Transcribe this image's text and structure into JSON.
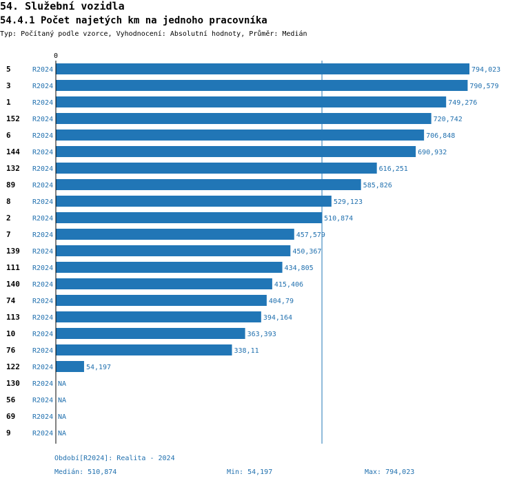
{
  "header": {
    "section_title": "54. Služební vozidla",
    "chart_title": "54.4.1 Počet najetých km na jednoho pracovníka",
    "subtitle": "Typ: Počítaný podle vzorce, Vyhodnocení: Absolutní hodnoty, Průměr: Medián"
  },
  "colors": {
    "bar": "#2176b6",
    "value_text": "#1f6fae",
    "axis": "#000000",
    "median_line": "#2176b6"
  },
  "chart_data": {
    "type": "bar",
    "orientation": "horizontal",
    "axis_zero_label": "0",
    "series_label": "R2024",
    "categories": [
      "5",
      "3",
      "1",
      "152",
      "6",
      "144",
      "132",
      "89",
      "8",
      "2",
      "7",
      "139",
      "111",
      "140",
      "74",
      "113",
      "10",
      "76",
      "122",
      "130",
      "56",
      "69",
      "9"
    ],
    "values": [
      794.023,
      790.579,
      749.276,
      720.742,
      706.848,
      690.932,
      616.251,
      585.826,
      529.123,
      510.874,
      457.579,
      450.367,
      434.805,
      415.406,
      404.79,
      394.164,
      363.393,
      338.11,
      54.197,
      null,
      null,
      null,
      null
    ],
    "value_labels": [
      "794,023",
      "790,579",
      "749,276",
      "720,742",
      "706,848",
      "690,932",
      "616,251",
      "585,826",
      "529,123",
      "510,874",
      "457,579",
      "450,367",
      "434,805",
      "415,406",
      "404,79",
      "394,164",
      "363,393",
      "338,11",
      "54,197",
      "NA",
      "NA",
      "NA",
      "NA"
    ],
    "median": 510.874,
    "xlim": [
      0,
      794.023
    ]
  },
  "footer": {
    "period": "Období[R2024]: Realita - 2024",
    "median": "Medián: 510,874",
    "min": "Min: 54,197",
    "max": "Max: 794,023"
  }
}
